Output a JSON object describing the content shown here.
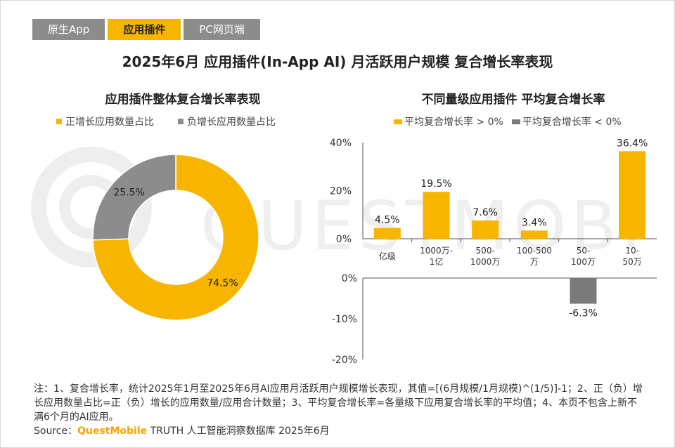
{
  "tabs": [
    {
      "label": "原生App",
      "active": false
    },
    {
      "label": "应用插件",
      "active": true
    },
    {
      "label": "PC网页端",
      "active": false
    }
  ],
  "title": "2025年6月 应用插件(In-App AI) 月活跃用户规模 复合增长率表现",
  "watermark": "QUESTMOBILE",
  "colors": {
    "accent": "#f7b500",
    "gray": "#8c8c8c",
    "dark_gray": "#7a7a7a"
  },
  "chart_data": [
    {
      "type": "pie",
      "title": "应用插件整体复合增长率表现",
      "legend": [
        "正增长应用数量占比",
        "负增长应用数量占比"
      ],
      "legend_position": "top",
      "slices": [
        {
          "name": "正增长应用数量占比",
          "value": 74.5,
          "label": "74.5%",
          "color": "#f7b500"
        },
        {
          "name": "负增长应用数量占比",
          "value": 25.5,
          "label": "25.5%",
          "color": "#8c8c8c"
        }
      ]
    },
    {
      "type": "bar",
      "title": "不同量级应用插件 平均复合增长率",
      "legend": [
        "平均复合增长率 > 0%",
        "平均复合增长率 < 0%"
      ],
      "legend_position": "top",
      "categories": [
        "亿级",
        "1000万-1亿",
        "500-1000万",
        "100-500万",
        "50-100万",
        "10-50万"
      ],
      "category_lines": [
        [
          "亿级"
        ],
        [
          "1000万-",
          "1亿"
        ],
        [
          "500-",
          "1000万"
        ],
        [
          "100-500",
          "万"
        ],
        [
          "50-",
          "100万"
        ],
        [
          "10-",
          "50万"
        ]
      ],
      "positive": {
        "name": "平均复合增长率 > 0%",
        "values": [
          4.5,
          19.5,
          7.6,
          3.4,
          0,
          36.4
        ],
        "labels": [
          "4.5%",
          "19.5%",
          "7.6%",
          "3.4%",
          "",
          "36.4%"
        ]
      },
      "negative": {
        "name": "平均复合增长率 < 0%",
        "values": [
          0,
          0,
          0,
          0,
          -6.3,
          0
        ],
        "labels": [
          "",
          "",
          "",
          "",
          "-6.3%",
          ""
        ]
      },
      "upper_ylim": [
        0,
        40
      ],
      "upper_ticks": [
        "40%",
        "20%",
        "0%"
      ],
      "lower_ylim": [
        -20,
        0
      ],
      "lower_ticks": [
        "0%",
        "-10%",
        "-20%"
      ]
    }
  ],
  "note": "注：1、复合增长率，统计2025年1月至2025年6月AI应用月活跃用户规模增长表现，其值=[(6月规模/1月规模)^(1/5)]-1；2、正（负）增长应用数量占比=正（负）增长的应用数量/应用合计数量；3、平均复合增长率=各量级下应用复合增长率的平均值；4、本页不包含上新不满6个月的AI应用。",
  "source": {
    "prefix": "Source：",
    "brand": "QuestMobile",
    "suffix": " TRUTH 人工智能洞察数据库 2025年6月"
  }
}
